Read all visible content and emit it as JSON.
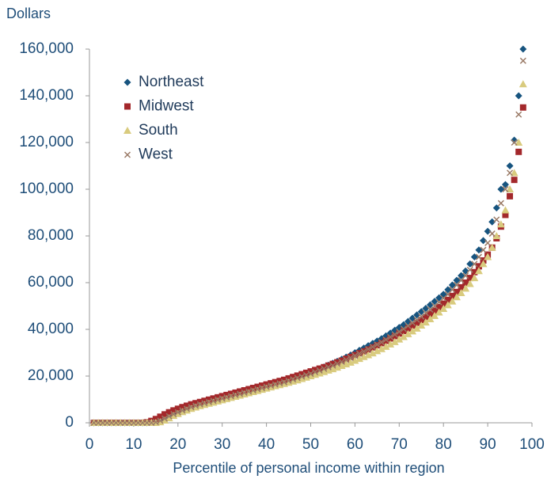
{
  "chart_data": {
    "type": "scatter",
    "y_label": "Dollars",
    "x_label": "Percentile of personal income within region",
    "x": [
      1,
      2,
      3,
      4,
      5,
      6,
      7,
      8,
      9,
      10,
      11,
      12,
      13,
      14,
      15,
      16,
      17,
      18,
      19,
      20,
      21,
      22,
      23,
      24,
      25,
      26,
      27,
      28,
      29,
      30,
      31,
      32,
      33,
      34,
      35,
      36,
      37,
      38,
      39,
      40,
      41,
      42,
      43,
      44,
      45,
      46,
      47,
      48,
      49,
      50,
      51,
      52,
      53,
      54,
      55,
      56,
      57,
      58,
      59,
      60,
      61,
      62,
      63,
      64,
      65,
      66,
      67,
      68,
      69,
      70,
      71,
      72,
      73,
      74,
      75,
      76,
      77,
      78,
      79,
      80,
      81,
      82,
      83,
      84,
      85,
      86,
      87,
      88,
      89,
      90,
      91,
      92,
      93,
      94,
      95,
      96,
      97,
      98
    ],
    "series": [
      {
        "name": "Northeast",
        "color": "#17547f",
        "marker": "diamond",
        "values": [
          0,
          0,
          0,
          0,
          0,
          0,
          0,
          0,
          0,
          0,
          0,
          0,
          0,
          300,
          800,
          1500,
          2500,
          3500,
          4300,
          5000,
          5800,
          6500,
          7200,
          7800,
          8300,
          8800,
          9300,
          9800,
          10300,
          10800,
          11300,
          11800,
          12300,
          12800,
          13300,
          13800,
          14300,
          14800,
          15300,
          15800,
          16300,
          16900,
          17500,
          18000,
          18600,
          19200,
          19800,
          20400,
          21000,
          21700,
          22400,
          23100,
          23900,
          24700,
          25500,
          26300,
          27200,
          28100,
          29000,
          30000,
          31000,
          32000,
          33000,
          34000,
          35000,
          36000,
          37200,
          38400,
          39600,
          40800,
          42000,
          43400,
          44800,
          46200,
          47600,
          49000,
          50500,
          52000,
          53500,
          55000,
          57000,
          59000,
          61000,
          63000,
          65000,
          68000,
          71000,
          74000,
          78000,
          82000,
          86000,
          92000,
          100000,
          102000,
          110000,
          121000,
          140000,
          160000
        ]
      },
      {
        "name": "Midwest",
        "color": "#a3282b",
        "marker": "square",
        "values": [
          0,
          0,
          0,
          0,
          0,
          0,
          0,
          0,
          0,
          0,
          0,
          0,
          200,
          800,
          1600,
          2600,
          3600,
          4500,
          5300,
          6000,
          6700,
          7300,
          7900,
          8400,
          8900,
          9400,
          9900,
          10400,
          10900,
          11400,
          11900,
          12400,
          12900,
          13400,
          13900,
          14400,
          14900,
          15400,
          15900,
          16400,
          16900,
          17400,
          17900,
          18400,
          19000,
          19600,
          20200,
          20800,
          21400,
          22000,
          22600,
          23200,
          23800,
          24500,
          25200,
          25900,
          26600,
          27400,
          28200,
          29000,
          29800,
          30600,
          31400,
          32300,
          33200,
          34100,
          35100,
          36100,
          37100,
          38200,
          39300,
          40400,
          41600,
          42800,
          44000,
          45300,
          46600,
          48000,
          49500,
          51000,
          52600,
          54300,
          56000,
          58000,
          60000,
          62000,
          64500,
          67000,
          69500,
          72000,
          75000,
          79000,
          84000,
          89000,
          97000,
          104000,
          116000,
          135000
        ]
      },
      {
        "name": "South",
        "color": "#d9cb7e",
        "marker": "triangle",
        "values": [
          0,
          0,
          0,
          0,
          0,
          0,
          0,
          0,
          0,
          0,
          0,
          0,
          0,
          0,
          0,
          300,
          1000,
          2000,
          3000,
          3800,
          4600,
          5300,
          6000,
          6600,
          7200,
          7700,
          8200,
          8700,
          9200,
          9700,
          10200,
          10700,
          11200,
          11700,
          12200,
          12700,
          13200,
          13700,
          14200,
          14700,
          15200,
          15700,
          16200,
          16700,
          17200,
          17700,
          18200,
          18800,
          19400,
          20000,
          20600,
          21200,
          21800,
          22400,
          23000,
          23700,
          24400,
          25100,
          25800,
          26600,
          27400,
          28200,
          29000,
          29800,
          30700,
          31600,
          32600,
          33600,
          34600,
          35700,
          36800,
          38000,
          39200,
          40400,
          41700,
          43000,
          44400,
          45800,
          47300,
          48800,
          50400,
          52000,
          53800,
          55600,
          57500,
          59500,
          62000,
          65000,
          68000,
          71000,
          75000,
          80000,
          85000,
          91000,
          100000,
          107000,
          120000,
          145000
        ]
      },
      {
        "name": "West",
        "color": "#9a7a66",
        "marker": "cross",
        "values": [
          0,
          0,
          0,
          0,
          0,
          0,
          0,
          0,
          0,
          0,
          0,
          0,
          0,
          0,
          300,
          900,
          1800,
          2800,
          3700,
          4500,
          5300,
          6000,
          6700,
          7300,
          7900,
          8400,
          8900,
          9400,
          9900,
          10400,
          10900,
          11400,
          11900,
          12400,
          12900,
          13400,
          13900,
          14400,
          14900,
          15400,
          15900,
          16400,
          16900,
          17400,
          18000,
          18600,
          19200,
          19800,
          20400,
          21000,
          21700,
          22400,
          23100,
          23800,
          24500,
          25300,
          26100,
          26900,
          27800,
          28700,
          29600,
          30500,
          31500,
          32500,
          33500,
          34500,
          35600,
          36700,
          37800,
          39000,
          40200,
          41500,
          42800,
          44100,
          45500,
          47000,
          48500,
          50000,
          51600,
          53300,
          55000,
          57000,
          59000,
          61000,
          63000,
          65500,
          68000,
          71000,
          74000,
          77000,
          81000,
          87000,
          94000,
          100000,
          107000,
          120000,
          132000,
          155000
        ]
      }
    ],
    "xlim": [
      0,
      100
    ],
    "xticks": [
      0,
      10,
      20,
      30,
      40,
      50,
      60,
      70,
      80,
      90,
      100
    ],
    "ylim": [
      0,
      160000
    ],
    "yticks": [
      0,
      {
        "value": 20000,
        "label": "20,000"
      },
      {
        "value": 40000,
        "label": "40,000"
      },
      {
        "value": 60000,
        "label": "60,000"
      },
      {
        "value": 80000,
        "label": "80,000"
      },
      {
        "value": 100000,
        "label": "100,000"
      },
      {
        "value": 120000,
        "label": "120,000"
      },
      {
        "value": 140000,
        "label": "140,000"
      },
      {
        "value": 160000,
        "label": "160,000"
      }
    ],
    "grid": false,
    "legend": "upper left"
  }
}
